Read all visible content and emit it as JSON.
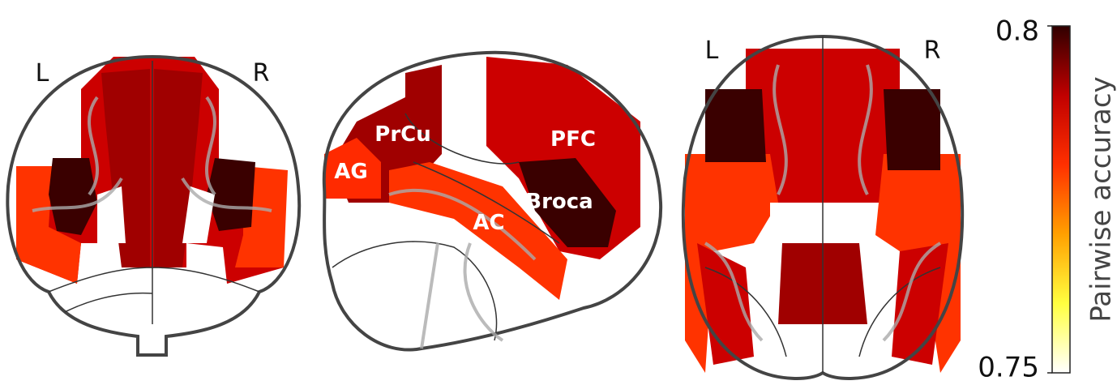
{
  "coronal": {
    "left_label": "L",
    "right_label": "R"
  },
  "sagittal": {
    "regions": [
      "PrCu",
      "PFC",
      "AG",
      "Broca",
      "AC"
    ]
  },
  "axial": {
    "left_label": "L",
    "right_label": "R"
  },
  "colorbar": {
    "label": "Pairwise accuracy",
    "lim": [
      0.75,
      0.8
    ],
    "ticks": [
      0.75,
      0.8
    ],
    "colors": [
      "#ffffff",
      "#ffff40",
      "#ffa000",
      "#ff3000",
      "#c00000",
      "#300000"
    ]
  }
}
